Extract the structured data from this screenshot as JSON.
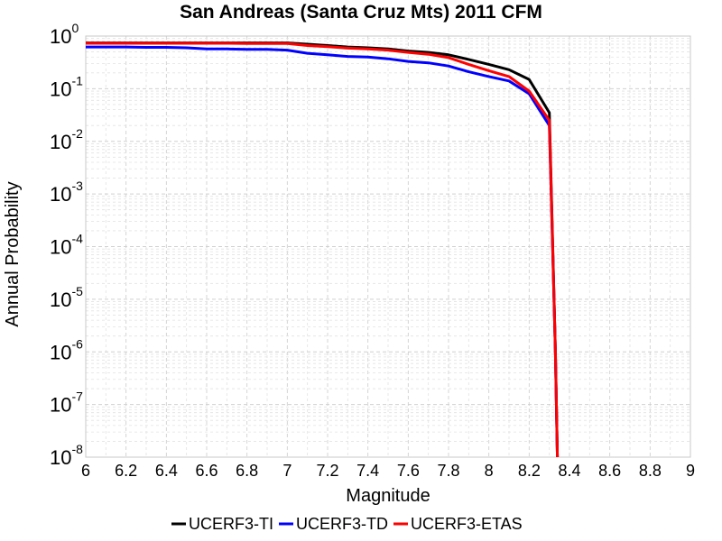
{
  "chart_data": {
    "type": "line",
    "title": "San Andreas (Santa Cruz Mts) 2011 CFM",
    "xlabel": "Magnitude",
    "ylabel": "Annual Probability",
    "xlim": [
      6,
      9
    ],
    "ylim": [
      1e-08,
      1
    ],
    "y_scale": "log",
    "x_ticks": [
      6,
      6.2,
      6.4,
      6.6,
      6.8,
      7,
      7.2,
      7.4,
      7.6,
      7.8,
      8,
      8.2,
      8.4,
      8.6,
      8.8,
      9
    ],
    "x_tick_labels": [
      "6",
      "6.2",
      "6.4",
      "6.6",
      "6.8",
      "7",
      "7.2",
      "7.4",
      "7.6",
      "7.8",
      "8",
      "8.2",
      "8.4",
      "8.6",
      "8.8",
      "9"
    ],
    "y_tick_base": "10",
    "y_tick_exponents": [
      "0",
      "-1",
      "-2",
      "-3",
      "-4",
      "-5",
      "-6",
      "-7",
      "-8"
    ],
    "grid": true,
    "legend_position": "bottom",
    "series": [
      {
        "name": "UCERF3-TI",
        "color": "#000000",
        "x": [
          6,
          6.1,
          6.2,
          6.3,
          6.4,
          6.5,
          6.6,
          6.7,
          6.8,
          6.9,
          7.0,
          7.1,
          7.2,
          7.3,
          7.4,
          7.5,
          7.6,
          7.7,
          7.8,
          7.9,
          8.0,
          8.1,
          8.2,
          8.3,
          8.33,
          8.34
        ],
        "y": [
          0.74,
          0.74,
          0.74,
          0.74,
          0.74,
          0.74,
          0.74,
          0.74,
          0.74,
          0.74,
          0.74,
          0.7,
          0.66,
          0.62,
          0.6,
          0.57,
          0.52,
          0.49,
          0.44,
          0.36,
          0.29,
          0.23,
          0.15,
          0.035,
          1e-06,
          1e-08
        ]
      },
      {
        "name": "UCERF3-TD",
        "color": "#0000ff",
        "x": [
          6,
          6.1,
          6.2,
          6.3,
          6.4,
          6.5,
          6.6,
          6.7,
          6.8,
          6.9,
          7.0,
          7.1,
          7.2,
          7.3,
          7.4,
          7.5,
          7.6,
          7.7,
          7.8,
          7.9,
          8.0,
          8.1,
          8.2,
          8.3,
          8.33,
          8.34
        ],
        "y": [
          0.62,
          0.62,
          0.62,
          0.61,
          0.61,
          0.6,
          0.57,
          0.57,
          0.56,
          0.56,
          0.54,
          0.47,
          0.44,
          0.41,
          0.4,
          0.37,
          0.33,
          0.31,
          0.27,
          0.21,
          0.17,
          0.14,
          0.08,
          0.02,
          1e-06,
          1e-08
        ]
      },
      {
        "name": "UCERF3-ETAS",
        "color": "#ff0000",
        "x": [
          6,
          6.1,
          6.2,
          6.3,
          6.4,
          6.5,
          6.6,
          6.7,
          6.8,
          6.9,
          7.0,
          7.1,
          7.2,
          7.3,
          7.4,
          7.5,
          7.6,
          7.7,
          7.8,
          7.9,
          8.0,
          8.1,
          8.2,
          8.3,
          8.33,
          8.34
        ],
        "y": [
          0.73,
          0.73,
          0.73,
          0.73,
          0.73,
          0.73,
          0.73,
          0.73,
          0.72,
          0.72,
          0.72,
          0.66,
          0.63,
          0.59,
          0.57,
          0.54,
          0.49,
          0.45,
          0.39,
          0.29,
          0.22,
          0.17,
          0.09,
          0.025,
          1e-06,
          1e-08
        ]
      }
    ]
  }
}
